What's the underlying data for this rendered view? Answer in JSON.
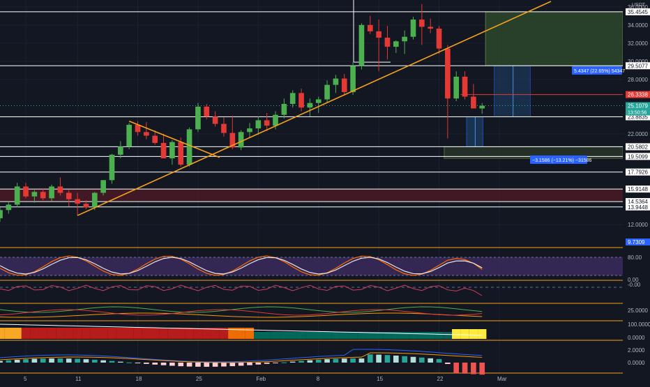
{
  "chart_data": {
    "type": "candlestick",
    "currency": "USDT",
    "colors": {
      "background": "#131722",
      "up": "#4caf50",
      "down": "#e53935",
      "hline": "#ffffff",
      "trendline": "#f7a21b",
      "rsi_fill": "#3c2a5c",
      "rsi_line": "#e7e7e7",
      "rsi_signal": "#ff6d00",
      "grid": "#1c2030",
      "separator": "#f7a21b",
      "axis_text": "#b2b5be",
      "last_price_bg": "#26a69a",
      "alert_bg": "#e53935",
      "long_zone": "#2e4a2b",
      "short_zone": "#1c3e63",
      "label_blue": "#2962ff"
    },
    "price_axis": {
      "ylim": [
        9.7,
        36.6
      ],
      "ticks": [
        "12.0000",
        "22.0000",
        "24.0000",
        "28.0000",
        "30.0000",
        "32.0000",
        "34.0000",
        "36.0000"
      ],
      "tick_values": [
        12,
        22,
        24,
        28,
        30,
        32,
        34,
        36
      ]
    },
    "x_axis": {
      "labels": [
        "5",
        "11",
        "18",
        "25",
        "Feb",
        "8",
        "15",
        "22",
        "Mar"
      ],
      "label_days": [
        5,
        11,
        18,
        25,
        32,
        39,
        46,
        53,
        60
      ],
      "xlim": [
        2,
        66
      ]
    },
    "level_labels": [
      {
        "text": "35.4545",
        "value": 35.4545
      },
      {
        "text": "29.5077",
        "value": 29.5077
      },
      {
        "text": "23.8835",
        "value": 23.8835
      },
      {
        "text": "20.5802",
        "value": 20.5802
      },
      {
        "text": "19.5099",
        "value": 19.5099
      },
      {
        "text": "17.7926",
        "value": 17.7926
      },
      {
        "text": "15.9148",
        "value": 15.9148
      },
      {
        "text": "14.5364",
        "value": 14.5364
      },
      {
        "text": "13.9448",
        "value": 13.9448
      }
    ],
    "last_price": {
      "price": "25.1079",
      "countdown": "13:50:56",
      "value": 25.1079
    },
    "alert_level": {
      "text": "26.3338",
      "value": 26.3338
    },
    "low_label": {
      "text": "9.7309",
      "value": 9.7309
    },
    "measure_long": "5.4347 (22.65%) 54347",
    "measure_short": "−3.1586 (−13.21%) −31586",
    "osc_labels": {
      "rsi_top": "80.00",
      "osc2": [
        "0.00",
        "-0.00"
      ],
      "osc3": "25.0000",
      "osc4": [
        "100.0000",
        "0.0000"
      ],
      "osc5": [
        "2.0000",
        "0.0000"
      ]
    },
    "candles": [
      {
        "d": 2,
        "o": 12.7,
        "h": 13.9,
        "l": 12.3,
        "c": 13.6
      },
      {
        "d": 3,
        "o": 13.6,
        "h": 14.6,
        "l": 13.2,
        "c": 14.2
      },
      {
        "d": 4,
        "o": 14.2,
        "h": 16.6,
        "l": 13.9,
        "c": 16.2
      },
      {
        "d": 5,
        "o": 16.2,
        "h": 16.6,
        "l": 14.9,
        "c": 15.1
      },
      {
        "d": 6,
        "o": 15.1,
        "h": 15.8,
        "l": 14.4,
        "c": 15.6
      },
      {
        "d": 7,
        "o": 15.6,
        "h": 16.0,
        "l": 14.7,
        "c": 14.9
      },
      {
        "d": 8,
        "o": 14.9,
        "h": 16.4,
        "l": 14.6,
        "c": 16.2
      },
      {
        "d": 9,
        "o": 16.2,
        "h": 17.2,
        "l": 15.2,
        "c": 15.5
      },
      {
        "d": 10,
        "o": 15.5,
        "h": 15.8,
        "l": 14.0,
        "c": 14.8
      },
      {
        "d": 11,
        "o": 14.8,
        "h": 15.5,
        "l": 13.0,
        "c": 14.3
      },
      {
        "d": 12,
        "o": 14.3,
        "h": 14.7,
        "l": 13.7,
        "c": 13.9
      },
      {
        "d": 13,
        "o": 13.9,
        "h": 15.6,
        "l": 13.6,
        "c": 15.5
      },
      {
        "d": 14,
        "o": 15.5,
        "h": 16.9,
        "l": 15.2,
        "c": 16.9
      },
      {
        "d": 15,
        "o": 16.9,
        "h": 19.8,
        "l": 16.5,
        "c": 19.7
      },
      {
        "d": 16,
        "o": 19.7,
        "h": 21.2,
        "l": 19.3,
        "c": 20.6
      },
      {
        "d": 17,
        "o": 20.6,
        "h": 23.2,
        "l": 20.3,
        "c": 23.0
      },
      {
        "d": 18,
        "o": 23.0,
        "h": 23.4,
        "l": 21.8,
        "c": 22.2
      },
      {
        "d": 19,
        "o": 22.2,
        "h": 23.3,
        "l": 21.4,
        "c": 21.8
      },
      {
        "d": 20,
        "o": 21.8,
        "h": 22.4,
        "l": 20.8,
        "c": 21.0
      },
      {
        "d": 21,
        "o": 21.0,
        "h": 22.0,
        "l": 19.5,
        "c": 19.3
      },
      {
        "d": 22,
        "o": 19.3,
        "h": 21.3,
        "l": 18.6,
        "c": 21.1
      },
      {
        "d": 23,
        "o": 21.1,
        "h": 21.6,
        "l": 18.4,
        "c": 18.6
      },
      {
        "d": 24,
        "o": 18.6,
        "h": 22.7,
        "l": 18.4,
        "c": 22.5
      },
      {
        "d": 25,
        "o": 22.5,
        "h": 25.4,
        "l": 22.2,
        "c": 25.0
      },
      {
        "d": 26,
        "o": 25.0,
        "h": 25.3,
        "l": 23.6,
        "c": 23.9
      },
      {
        "d": 27,
        "o": 23.9,
        "h": 24.5,
        "l": 22.8,
        "c": 23.1
      },
      {
        "d": 28,
        "o": 23.1,
        "h": 23.8,
        "l": 21.7,
        "c": 22.1
      },
      {
        "d": 29,
        "o": 22.1,
        "h": 24.0,
        "l": 20.3,
        "c": 20.5
      },
      {
        "d": 30,
        "o": 20.5,
        "h": 22.4,
        "l": 20.2,
        "c": 22.2
      },
      {
        "d": 31,
        "o": 22.2,
        "h": 23.2,
        "l": 21.6,
        "c": 22.6
      },
      {
        "d": 32,
        "o": 22.6,
        "h": 23.9,
        "l": 21.9,
        "c": 23.5
      },
      {
        "d": 33,
        "o": 23.5,
        "h": 24.3,
        "l": 22.3,
        "c": 22.9
      },
      {
        "d": 34,
        "o": 22.9,
        "h": 24.5,
        "l": 22.5,
        "c": 24.1
      },
      {
        "d": 35,
        "o": 24.1,
        "h": 25.9,
        "l": 23.7,
        "c": 25.3
      },
      {
        "d": 36,
        "o": 25.3,
        "h": 26.8,
        "l": 24.9,
        "c": 26.5
      },
      {
        "d": 37,
        "o": 26.5,
        "h": 27.0,
        "l": 24.5,
        "c": 24.9
      },
      {
        "d": 38,
        "o": 24.9,
        "h": 25.9,
        "l": 23.9,
        "c": 25.4
      },
      {
        "d": 39,
        "o": 25.4,
        "h": 26.1,
        "l": 24.3,
        "c": 25.8
      },
      {
        "d": 40,
        "o": 25.8,
        "h": 27.9,
        "l": 25.5,
        "c": 27.4
      },
      {
        "d": 41,
        "o": 27.4,
        "h": 28.5,
        "l": 26.5,
        "c": 28.1
      },
      {
        "d": 42,
        "o": 28.1,
        "h": 28.6,
        "l": 26.2,
        "c": 26.6
      },
      {
        "d": 43,
        "o": 26.6,
        "h": 29.9,
        "l": 26.3,
        "c": 29.5
      },
      {
        "d": 44,
        "o": 29.5,
        "h": 34.2,
        "l": 29.1,
        "c": 34.0
      },
      {
        "d": 45,
        "o": 34.0,
        "h": 35.0,
        "l": 33.0,
        "c": 33.3
      },
      {
        "d": 46,
        "o": 33.3,
        "h": 34.6,
        "l": 28.9,
        "c": 32.6
      },
      {
        "d": 47,
        "o": 32.6,
        "h": 33.9,
        "l": 30.2,
        "c": 31.6
      },
      {
        "d": 48,
        "o": 31.6,
        "h": 32.3,
        "l": 30.9,
        "c": 32.2
      },
      {
        "d": 49,
        "o": 32.2,
        "h": 33.4,
        "l": 30.8,
        "c": 32.7
      },
      {
        "d": 50,
        "o": 32.7,
        "h": 34.9,
        "l": 32.4,
        "c": 34.6
      },
      {
        "d": 51,
        "o": 34.6,
        "h": 36.3,
        "l": 31.8,
        "c": 33.8
      },
      {
        "d": 52,
        "o": 33.8,
        "h": 34.7,
        "l": 33.1,
        "c": 33.6
      },
      {
        "d": 53,
        "o": 33.6,
        "h": 33.9,
        "l": 30.8,
        "c": 31.4
      },
      {
        "d": 54,
        "o": 31.4,
        "h": 31.8,
        "l": 21.5,
        "c": 25.9
      },
      {
        "d": 55,
        "o": 25.9,
        "h": 28.9,
        "l": 25.6,
        "c": 28.3
      },
      {
        "d": 56,
        "o": 28.3,
        "h": 28.9,
        "l": 25.8,
        "c": 26.1
      },
      {
        "d": 57,
        "o": 26.1,
        "h": 27.5,
        "l": 24.8,
        "c": 24.8
      },
      {
        "d": 58,
        "o": 24.8,
        "h": 25.4,
        "l": 24.2,
        "c": 25.1
      }
    ]
  }
}
